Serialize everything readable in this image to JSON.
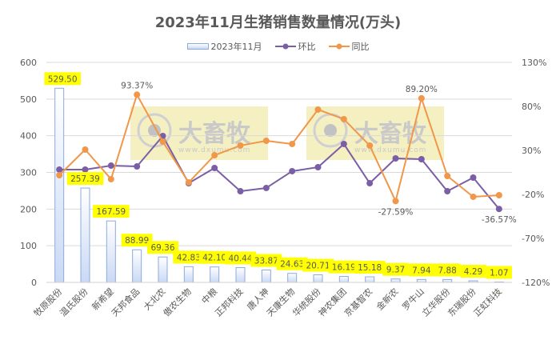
{
  "title": "2023年11月生猪销售数量情况(万头)",
  "legend": [
    {
      "label": "2023年11月",
      "type": "bar"
    },
    {
      "label": "环比",
      "type": "line",
      "color": "#7a5ea6"
    },
    {
      "label": "同比",
      "type": "line",
      "color": "#f0974a"
    }
  ],
  "watermark": {
    "text": "大畜牧",
    "url": "www.dxumu.com"
  },
  "colors": {
    "bar_border": "#8faadc",
    "bar_fill_top": "#ffffff",
    "bar_fill_bottom": "#c9d9f5",
    "huanbi": "#7a5ea6",
    "tongbi": "#f0974a",
    "label_bg": "#ffff00",
    "grid": "#d9d9d9",
    "watermark_bg": "#f3eeb8"
  },
  "chart_data": {
    "type": "bar+line",
    "title": "2023年11月生猪销售数量情况(万头)",
    "categories": [
      "牧原股份",
      "温氏股份",
      "新希望",
      "天邦食品",
      "大北农",
      "傲农生物",
      "中粮",
      "正邦科技",
      "唐人神",
      "天康生物",
      "华统股份",
      "神农集团",
      "京基智农",
      "金新农",
      "罗牛山",
      "立华股份",
      "东瑞股份",
      "正虹科技"
    ],
    "series": [
      {
        "name": "2023年11月",
        "type": "bar",
        "axis": "left",
        "values": [
          529.5,
          257.39,
          167.59,
          88.99,
          69.36,
          42.83,
          42.1,
          40.44,
          33.87,
          24.63,
          20.71,
          16.19,
          15.18,
          9.37,
          7.94,
          7.88,
          4.29,
          1.07
        ]
      },
      {
        "name": "环比",
        "type": "line",
        "axis": "right",
        "unit": "%",
        "values": [
          8.2,
          8.2,
          12.7,
          11.8,
          46.4,
          -7.3,
          10.0,
          -16.4,
          -12.7,
          6.4,
          10.9,
          37.3,
          -7.3,
          20.9,
          20.0,
          -16.4,
          -0.9,
          -36.57
        ]
      },
      {
        "name": "同比",
        "type": "line",
        "axis": "right",
        "unit": "%",
        "values": [
          1.8,
          30.9,
          -2.7,
          93.37,
          40.0,
          -6.4,
          24.5,
          35.5,
          40.9,
          37.3,
          76.4,
          65.5,
          35.5,
          -27.59,
          89.2,
          0.9,
          -22.7,
          -20.9
        ]
      }
    ],
    "labeled_points": {
      "同比": {
        "3": "93.37%",
        "13": "-27.59%",
        "14": "89.20%"
      },
      "环比": {
        "17": "-36.57%"
      }
    },
    "bar_labels": [
      "529.50",
      "257.39",
      "167.59",
      "88.99",
      "69.36",
      "42.83",
      "42.10",
      "40.44",
      "33.87",
      "24.63",
      "20.71",
      "16.19",
      "15.18",
      "9.37",
      "7.94",
      "7.88",
      "4.29",
      "1.07"
    ],
    "left_axis": {
      "ticks": [
        "0",
        "100",
        "200",
        "300",
        "400",
        "500",
        "600"
      ],
      "ylim": [
        0,
        600
      ]
    },
    "right_axis": {
      "ticks": [
        "-120%",
        "-70%",
        "-20%",
        "30%",
        "80%",
        "130%"
      ],
      "ylim": [
        -120,
        130
      ]
    },
    "grid": true,
    "legend_position": "top"
  }
}
